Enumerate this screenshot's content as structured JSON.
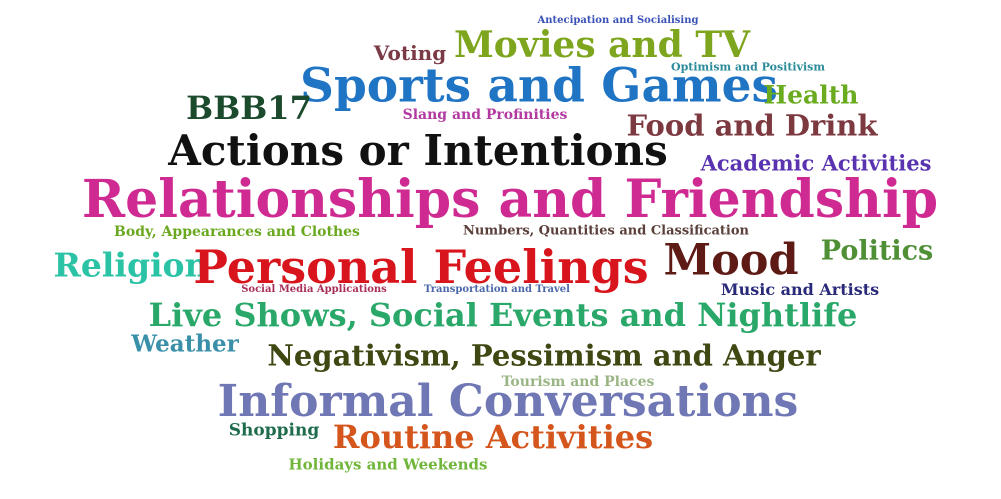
{
  "words": [
    {
      "text": "Antecipation and Socialising",
      "color": "#3a52b8"
    },
    {
      "text": "Voting",
      "color": "#7a3a46"
    },
    {
      "text": "Movies and TV",
      "color": "#7da51e"
    },
    {
      "text": "Optimism and Positivism",
      "color": "#2b8a9a"
    },
    {
      "text": "Sports and Games",
      "color": "#1f74c4"
    },
    {
      "text": "BBB17",
      "color": "#1c4a2c"
    },
    {
      "text": "Health",
      "color": "#6aab1f"
    },
    {
      "text": "Slang and Profinities",
      "color": "#b23aa0"
    },
    {
      "text": "Food and Drink",
      "color": "#7c3a40"
    },
    {
      "text": "Actions or Intentions",
      "color": "#111111"
    },
    {
      "text": "Academic Activities",
      "color": "#5a34b0"
    },
    {
      "text": "Relationships and Friendship",
      "color": "#cf2a92"
    },
    {
      "text": "Body, Appearances and Clothes",
      "color": "#6aa820"
    },
    {
      "text": "Numbers, Quantities and Classification",
      "color": "#5a3f3a"
    },
    {
      "text": "Religion",
      "color": "#2bc3a6"
    },
    {
      "text": "Personal Feelings",
      "color": "#d8151c"
    },
    {
      "text": "Mood",
      "color": "#5e1a14"
    },
    {
      "text": "Politics",
      "color": "#4f8f36"
    },
    {
      "text": "Social Media Applications",
      "color": "#a82e5a"
    },
    {
      "text": "Transportation and Travel",
      "color": "#4a67a8"
    },
    {
      "text": "Music and Artists",
      "color": "#2a2a7a"
    },
    {
      "text": "Live Shows, Social Events and Nightlife",
      "color": "#2aa86a"
    },
    {
      "text": "Weather",
      "color": "#3a90a8"
    },
    {
      "text": "Negativism, Pessimism and Anger",
      "color": "#3f4712"
    },
    {
      "text": "Tourism and Places",
      "color": "#9ab584"
    },
    {
      "text": "Informal Conversations",
      "color": "#7077b5"
    },
    {
      "text": "Shopping",
      "color": "#1f6c4d"
    },
    {
      "text": "Routine Activities",
      "color": "#d5561c"
    },
    {
      "text": "Holidays and Weekends",
      "color": "#6fb63a"
    }
  ]
}
